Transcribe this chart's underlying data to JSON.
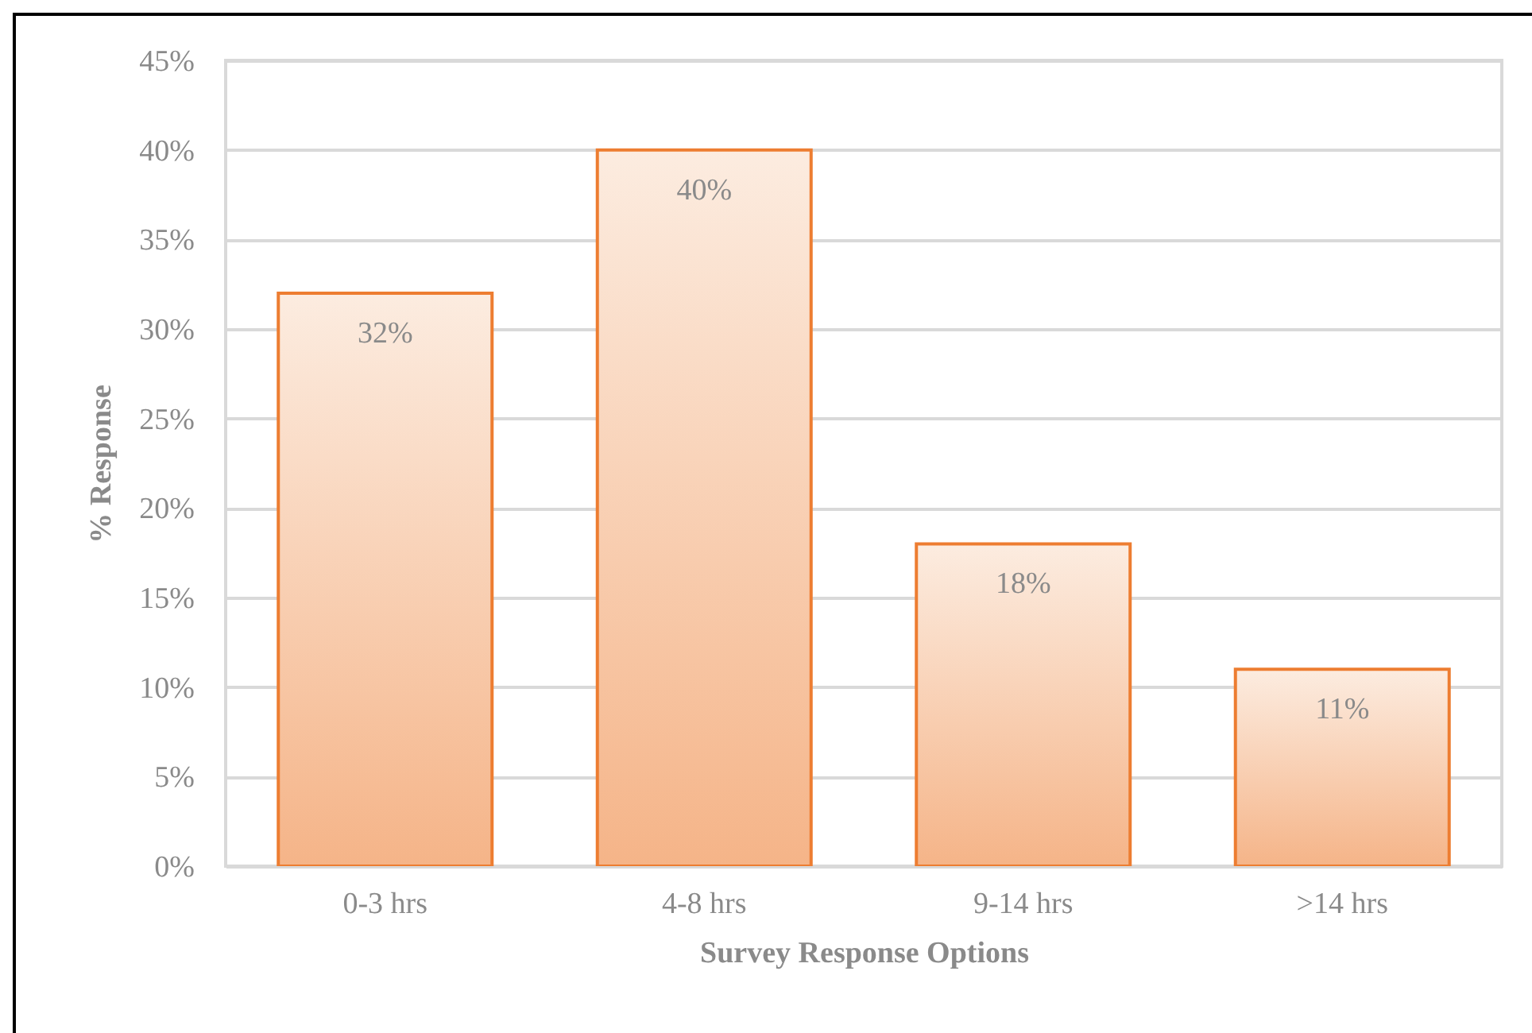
{
  "chart_data": {
    "type": "bar",
    "xlabel": "Survey Response Options",
    "ylabel": "% Response",
    "categories": [
      "0-3 hrs",
      "4-8 hrs",
      "9-14 hrs",
      ">14 hrs"
    ],
    "values": [
      32,
      40,
      18,
      11
    ],
    "value_labels": [
      "32%",
      "40%",
      "18%",
      "11%"
    ],
    "color": "#ed7d31",
    "ylim": [
      0,
      45
    ],
    "yticks": [
      {
        "value": 0,
        "label": "0%"
      },
      {
        "value": 5,
        "label": "5%"
      },
      {
        "value": 10,
        "label": "10%"
      },
      {
        "value": 15,
        "label": "15%"
      },
      {
        "value": 20,
        "label": "20%"
      },
      {
        "value": 25,
        "label": "25%"
      },
      {
        "value": 30,
        "label": "30%"
      },
      {
        "value": 35,
        "label": "35%"
      },
      {
        "value": 40,
        "label": "40%"
      },
      {
        "value": 45,
        "label": "45%"
      }
    ],
    "grid": "y"
  }
}
